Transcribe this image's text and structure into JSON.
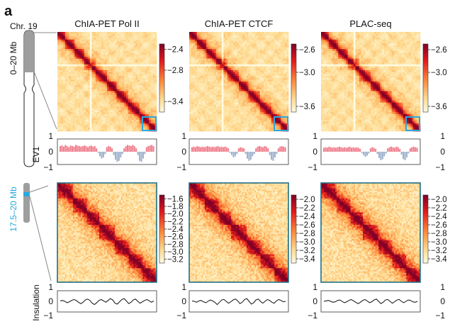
{
  "panel_label": "a",
  "chromosome": {
    "label": "Chr. 19",
    "top_range_label": "0–20 Mb",
    "bottom_range_label": "17.5–20 Mb",
    "highlight_color": "#29a9df",
    "body_color": "#9e9e9e"
  },
  "colors": {
    "frame_top_box": "#29a9df",
    "frame_bottom": "#1f6f86",
    "ev1_positive": "#ef7f8e",
    "ev1_negative": "#9fb1cc",
    "insulation_line": "#111111"
  },
  "chart_data": [
    {
      "type": "heatmap",
      "title": "ChIA-PET Pol II",
      "region": "0–20 Mb",
      "colorbar_ticks": [
        "−2.4",
        "−2.8",
        "−3.4"
      ],
      "colorbar_values": [
        -2.4,
        -2.8,
        -3.4
      ],
      "colorbar_range": [
        -3.6,
        -2.3
      ],
      "colormap": [
        "#fffbe0",
        "#fed98e",
        "#fd8d3c",
        "#e31a1c",
        "#800026"
      ],
      "highlight_box": "17.5–20 Mb"
    },
    {
      "type": "heatmap",
      "title": "ChIA-PET CTCF",
      "region": "0–20 Mb",
      "colorbar_ticks": [
        "−2.6",
        "−3.0",
        "−3.6"
      ],
      "colorbar_values": [
        -2.6,
        -3.0,
        -3.6
      ],
      "colorbar_range": [
        -3.7,
        -2.5
      ],
      "colormap": [
        "#fffbe0",
        "#fed98e",
        "#fd8d3c",
        "#e31a1c",
        "#800026"
      ],
      "highlight_box": "17.5–20 Mb"
    },
    {
      "type": "heatmap",
      "title": "PLAC-seq",
      "region": "0–20 Mb",
      "colorbar_ticks": [
        "−2.6",
        "−3.0",
        "−3.6"
      ],
      "colorbar_values": [
        -2.6,
        -3.0,
        -3.6
      ],
      "colorbar_range": [
        -3.7,
        -2.5
      ],
      "colormap": [
        "#fffbe0",
        "#fed98e",
        "#fd8d3c",
        "#e31a1c",
        "#800026"
      ],
      "highlight_box": "17.5–20 Mb"
    },
    {
      "type": "area",
      "ylabel": "EV1",
      "yticks": [
        "1",
        "0",
        "−1"
      ],
      "ylim": [
        -1,
        1
      ],
      "series_by_panel": [
        [
          0.5,
          0.55,
          0.45,
          0.6,
          0.5,
          0.4,
          0.55,
          0.5,
          0.45,
          0.6,
          0.55,
          0.5,
          0.45,
          0.5,
          0.55,
          0.5,
          0.4,
          0.5,
          0.55,
          0.45,
          0.5,
          0.3,
          -0.1,
          -0.4,
          -0.6,
          -0.5,
          -0.2,
          0.4,
          0.5,
          0.45,
          0.3,
          -0.3,
          -0.7,
          -0.9,
          -0.8,
          -0.5,
          -0.2,
          0.3,
          0.5,
          0.6,
          0.55,
          0.5,
          0.6,
          0.5,
          0.3,
          -0.3,
          -0.8,
          -0.9,
          -0.6,
          -0.2,
          0.4,
          0.5,
          0.55,
          0.6,
          0.5
        ],
        [
          0.4,
          0.45,
          0.4,
          0.5,
          0.45,
          0.4,
          0.45,
          0.4,
          0.45,
          0.5,
          0.45,
          0.4,
          0.45,
          0.4,
          0.45,
          0.5,
          0.4,
          0.45,
          0.4,
          0.45,
          0.4,
          0.3,
          -0.1,
          -0.3,
          -0.5,
          -0.4,
          -0.2,
          0.3,
          0.4,
          0.35,
          0.3,
          -0.2,
          -0.6,
          -0.8,
          -0.7,
          -0.4,
          -0.2,
          0.3,
          0.45,
          0.5,
          0.45,
          0.4,
          0.5,
          0.45,
          0.3,
          -0.3,
          -0.7,
          -0.8,
          -0.5,
          -0.2,
          0.3,
          0.45,
          0.5,
          0.45,
          0.4
        ],
        [
          0.35,
          0.4,
          0.35,
          0.45,
          0.4,
          0.35,
          0.4,
          0.35,
          0.4,
          0.45,
          0.4,
          0.35,
          0.4,
          0.35,
          0.4,
          0.45,
          0.35,
          0.4,
          0.35,
          0.4,
          0.35,
          0.25,
          -0.1,
          -0.3,
          -0.45,
          -0.35,
          -0.15,
          0.3,
          0.4,
          0.35,
          0.25,
          -0.2,
          -0.55,
          -0.75,
          -0.65,
          -0.4,
          -0.15,
          0.3,
          0.4,
          0.45,
          0.4,
          0.35,
          0.45,
          0.4,
          0.25,
          -0.25,
          -0.65,
          -0.75,
          -0.5,
          -0.15,
          0.3,
          0.4,
          0.45,
          0.4,
          0.35
        ]
      ]
    },
    {
      "type": "heatmap",
      "region": "17.5–20 Mb",
      "colorbar_ticks": [
        "−1.6",
        "−1.8",
        "−2.0",
        "−2.2",
        "−2.4",
        "−2.6",
        "−2.8",
        "−3.0",
        "−3.2"
      ],
      "colorbar_values": [
        -1.6,
        -1.8,
        -2.0,
        -2.2,
        -2.4,
        -2.6,
        -2.8,
        -3.0,
        -3.2
      ],
      "colorbar_range": [
        -3.3,
        -1.5
      ]
    },
    {
      "type": "heatmap",
      "region": "17.5–20 Mb",
      "colorbar_ticks": [
        "−2.0",
        "−2.2",
        "−2.4",
        "−2.6",
        "−2.8",
        "−3.0",
        "−3.2",
        "−3.4"
      ],
      "colorbar_values": [
        -2.0,
        -2.2,
        -2.4,
        -2.6,
        -2.8,
        -3.0,
        -3.2,
        -3.4
      ],
      "colorbar_range": [
        -3.5,
        -1.9
      ]
    },
    {
      "type": "heatmap",
      "region": "17.5–20 Mb",
      "colorbar_ticks": [
        "−2.0",
        "−2.2",
        "−2.4",
        "−2.6",
        "−2.8",
        "−3.0",
        "−3.2",
        "−3.4"
      ],
      "colorbar_values": [
        -2.0,
        -2.2,
        -2.4,
        -2.6,
        -2.8,
        -3.0,
        -3.2,
        -3.4
      ],
      "colorbar_range": [
        -3.5,
        -1.9
      ]
    },
    {
      "type": "line",
      "ylabel": "Insulation",
      "yticks": [
        "1",
        "0",
        "−1"
      ],
      "ylim": [
        -1,
        1
      ],
      "series_by_panel": [
        [
          0.05,
          0.1,
          0.0,
          -0.15,
          -0.05,
          0.1,
          0.2,
          0.1,
          -0.1,
          -0.25,
          -0.1,
          0.15,
          0.25,
          0.1,
          -0.2,
          -0.35,
          -0.15,
          0.1,
          0.2,
          0.05,
          -0.1,
          0.1,
          0.3,
          0.15,
          -0.2,
          -0.3,
          -0.05,
          0.2,
          0.3,
          0.05,
          -0.25,
          -0.1,
          0.15,
          0.25,
          0.0,
          -0.2,
          -0.05,
          0.1,
          0.2,
          0.05,
          -0.1,
          0.05
        ],
        [
          0.05,
          0.0,
          -0.1,
          0.05,
          0.1,
          -0.05,
          -0.15,
          0.0,
          0.15,
          0.05,
          -0.1,
          -0.35,
          -0.1,
          0.15,
          0.2,
          0.0,
          -0.2,
          -0.05,
          0.15,
          0.25,
          0.05,
          -0.25,
          -0.1,
          0.2,
          0.3,
          0.0,
          -0.3,
          -0.15,
          0.15,
          0.25,
          0.0,
          -0.2,
          0.0,
          0.2,
          0.1,
          -0.1,
          -0.2,
          0.05,
          0.2,
          0.1,
          -0.05,
          0.0
        ],
        [
          0.0,
          0.05,
          0.1,
          0.0,
          -0.1,
          -0.05,
          0.1,
          0.15,
          0.0,
          -0.15,
          -0.05,
          0.1,
          0.2,
          0.05,
          -0.1,
          -0.25,
          -0.1,
          0.1,
          0.2,
          0.05,
          -0.15,
          -0.05,
          0.15,
          0.25,
          0.0,
          -0.25,
          -0.1,
          0.15,
          0.2,
          0.0,
          -0.2,
          -0.05,
          0.15,
          0.2,
          0.0,
          -0.15,
          0.0,
          0.15,
          0.1,
          -0.05,
          -0.1,
          0.0
        ]
      ]
    }
  ]
}
